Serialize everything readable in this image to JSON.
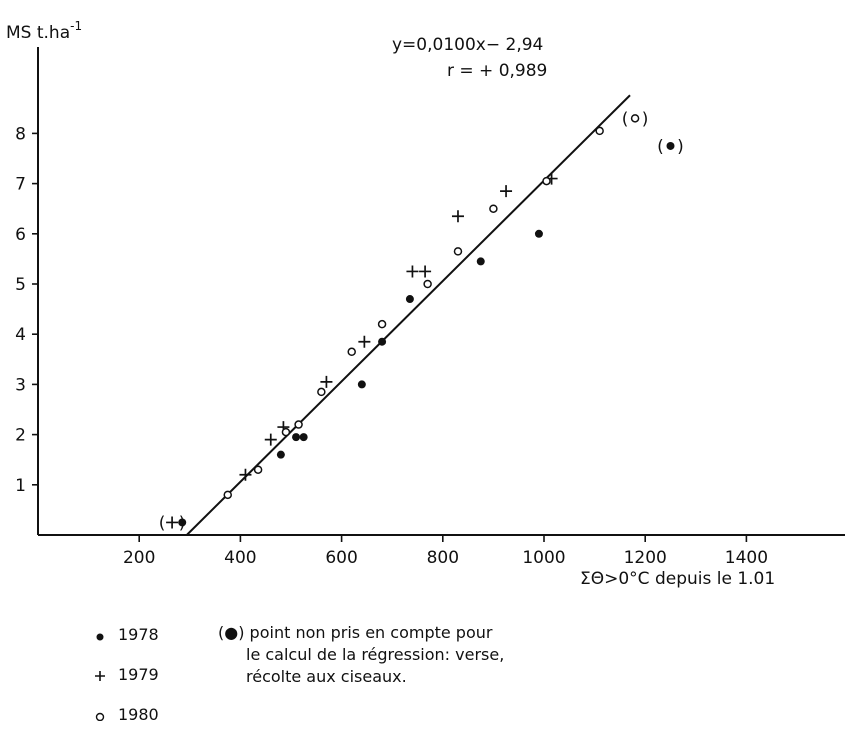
{
  "chart_data": {
    "type": "scatter",
    "ylabel": "MS t.ha",
    "ylabel_sup": "-1",
    "xlabel": "ΣΘ>0°C depuis le 1.01",
    "xlim": [
      0,
      1600
    ],
    "ylim": [
      0,
      9
    ],
    "x_ticks": [
      "200",
      "400",
      "600",
      "800",
      "1000",
      "1200",
      "1400"
    ],
    "y_ticks": [
      "1",
      "2",
      "3",
      "4",
      "5",
      "6",
      "7",
      "8"
    ],
    "grid": false,
    "regression": {
      "slope": 0.01,
      "intercept": -2.94,
      "x_range": [
        294,
        1170
      ],
      "equation": "y=0,0100x− 2,94",
      "r": "r = + 0,989"
    },
    "series": [
      {
        "name": "1978",
        "marker": "filled-circle",
        "points": [
          [
            285,
            0.25
          ],
          [
            480,
            1.6
          ],
          [
            510,
            1.95
          ],
          [
            525,
            1.95
          ],
          [
            640,
            3.0
          ],
          [
            680,
            3.85
          ],
          [
            735,
            4.7
          ],
          [
            875,
            5.45
          ],
          [
            990,
            6.0
          ]
        ],
        "excluded": [
          [
            1250,
            7.75
          ]
        ]
      },
      {
        "name": "1979",
        "marker": "plus",
        "points": [
          [
            410,
            1.2
          ],
          [
            460,
            1.9
          ],
          [
            485,
            2.15
          ],
          [
            570,
            3.05
          ],
          [
            645,
            3.85
          ],
          [
            740,
            5.25
          ],
          [
            765,
            5.25
          ],
          [
            830,
            6.35
          ],
          [
            925,
            6.85
          ],
          [
            1015,
            7.1
          ]
        ],
        "excluded": [
          [
            265,
            0.25
          ]
        ]
      },
      {
        "name": "1980",
        "marker": "open-circle",
        "points": [
          [
            375,
            0.8
          ],
          [
            435,
            1.3
          ],
          [
            490,
            2.05
          ],
          [
            515,
            2.2
          ],
          [
            560,
            2.85
          ],
          [
            620,
            3.65
          ],
          [
            680,
            4.2
          ],
          [
            770,
            5.0
          ],
          [
            830,
            5.65
          ],
          [
            900,
            6.5
          ],
          [
            1005,
            7.05
          ],
          [
            1110,
            8.05
          ]
        ],
        "excluded": [
          [
            1180,
            8.3
          ]
        ]
      }
    ]
  },
  "axis_label": "MS t.ha",
  "axis_label_sup": "-1",
  "x_axis_title": "ΣΘ>0°C depuis le 1.01",
  "equation": "y=0,0100x− 2,94",
  "correlation": "r = + 0,989",
  "legend": [
    {
      "label": "1978",
      "symbol": "filled-circle"
    },
    {
      "label": "1979",
      "symbol": "plus"
    },
    {
      "label": "1980",
      "symbol": "open-circle"
    }
  ],
  "note": {
    "marker": "(●)",
    "line1": "point non pris en compte pour",
    "line2": "le calcul de la régression: verse,",
    "line3": "récolte aux ciseaux."
  }
}
